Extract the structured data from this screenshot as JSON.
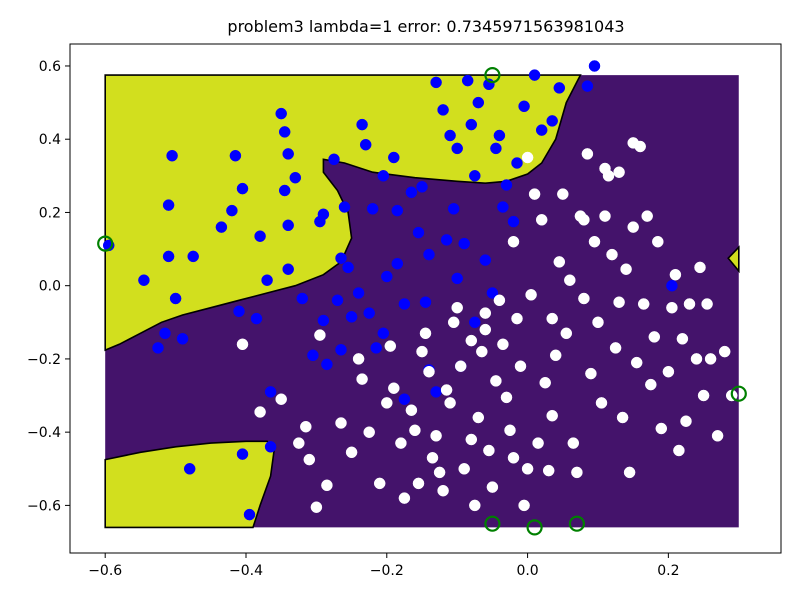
{
  "chart_data": {
    "type": "scatter",
    "title": "problem3 lambda=1 error: 0.7345971563981043",
    "xlabel": "",
    "ylabel": "",
    "xlim": [
      -0.65,
      0.36
    ],
    "ylim": [
      -0.73,
      0.66
    ],
    "x_ticks": [
      "−0.6",
      "−0.4",
      "−0.2",
      "0.0",
      "0.2"
    ],
    "x_tick_values": [
      -0.6,
      -0.4,
      -0.2,
      0.0,
      0.2
    ],
    "y_ticks": [
      "0.6",
      "0.4",
      "0.2",
      "0.0",
      "−0.2",
      "−0.4",
      "−0.6"
    ],
    "y_tick_values": [
      0.6,
      0.4,
      0.2,
      0.0,
      -0.2,
      -0.4,
      -0.6
    ],
    "grid": false,
    "legend": "none",
    "background_region": {
      "x_range": [
        -0.6,
        0.3
      ],
      "y_range": [
        -0.66,
        0.575
      ],
      "class_0_color": "#44136b",
      "class_1_color": "#d2df1e",
      "boundary_color": "#000000",
      "yellow_upper_region": [
        [
          -0.6,
          -0.176
        ],
        [
          -0.58,
          -0.16
        ],
        [
          -0.55,
          -0.13
        ],
        [
          -0.52,
          -0.1
        ],
        [
          -0.49,
          -0.08
        ],
        [
          -0.45,
          -0.06
        ],
        [
          -0.41,
          -0.04
        ],
        [
          -0.37,
          -0.02
        ],
        [
          -0.33,
          0.0
        ],
        [
          -0.29,
          0.03
        ],
        [
          -0.265,
          0.065
        ],
        [
          -0.25,
          0.13
        ],
        [
          -0.255,
          0.2
        ],
        [
          -0.27,
          0.26
        ],
        [
          -0.29,
          0.31
        ],
        [
          -0.29,
          0.345
        ],
        [
          -0.26,
          0.335
        ],
        [
          -0.22,
          0.31
        ],
        [
          -0.16,
          0.295
        ],
        [
          -0.1,
          0.285
        ],
        [
          -0.06,
          0.28
        ],
        [
          -0.03,
          0.285
        ],
        [
          0.0,
          0.305
        ],
        [
          0.02,
          0.335
        ],
        [
          0.04,
          0.4
        ],
        [
          0.055,
          0.5
        ],
        [
          0.075,
          0.575
        ],
        [
          -0.6,
          0.575
        ]
      ],
      "yellow_lower_region": [
        [
          -0.6,
          -0.475
        ],
        [
          -0.55,
          -0.455
        ],
        [
          -0.5,
          -0.44
        ],
        [
          -0.45,
          -0.43
        ],
        [
          -0.4,
          -0.425
        ],
        [
          -0.37,
          -0.425
        ],
        [
          -0.36,
          -0.45
        ],
        [
          -0.365,
          -0.52
        ],
        [
          -0.38,
          -0.6
        ],
        [
          -0.39,
          -0.66
        ],
        [
          -0.6,
          -0.66
        ]
      ],
      "yellow_right_region": [
        [
          0.3,
          0.105
        ],
        [
          0.285,
          0.075
        ],
        [
          0.3,
          0.04
        ]
      ]
    },
    "series": [
      {
        "color": "#0000ff",
        "points": [
          [
            -0.595,
            0.11
          ],
          [
            -0.545,
            0.015
          ],
          [
            -0.525,
            -0.17
          ],
          [
            -0.515,
            -0.13
          ],
          [
            -0.51,
            0.08
          ],
          [
            -0.51,
            0.22
          ],
          [
            -0.505,
            0.355
          ],
          [
            -0.5,
            -0.035
          ],
          [
            -0.49,
            -0.145
          ],
          [
            -0.48,
            -0.5
          ],
          [
            -0.475,
            0.08
          ],
          [
            -0.435,
            0.16
          ],
          [
            -0.42,
            0.205
          ],
          [
            -0.415,
            0.355
          ],
          [
            -0.41,
            -0.07
          ],
          [
            -0.405,
            0.265
          ],
          [
            -0.405,
            -0.46
          ],
          [
            -0.395,
            -0.625
          ],
          [
            -0.385,
            -0.09
          ],
          [
            -0.38,
            0.135
          ],
          [
            -0.37,
            0.015
          ],
          [
            -0.365,
            -0.29
          ],
          [
            -0.365,
            -0.44
          ],
          [
            -0.35,
            0.47
          ],
          [
            -0.345,
            0.42
          ],
          [
            -0.345,
            0.26
          ],
          [
            -0.34,
            0.36
          ],
          [
            -0.34,
            0.165
          ],
          [
            -0.34,
            0.045
          ],
          [
            -0.33,
            0.295
          ],
          [
            -0.32,
            -0.035
          ],
          [
            -0.305,
            -0.19
          ],
          [
            -0.295,
            0.175
          ],
          [
            -0.29,
            0.195
          ],
          [
            -0.29,
            -0.095
          ],
          [
            -0.285,
            -0.215
          ],
          [
            -0.275,
            0.345
          ],
          [
            -0.27,
            -0.04
          ],
          [
            -0.265,
            0.075
          ],
          [
            -0.26,
            0.215
          ],
          [
            -0.255,
            0.05
          ],
          [
            -0.25,
            -0.085
          ],
          [
            -0.24,
            -0.02
          ],
          [
            -0.235,
            0.44
          ],
          [
            -0.23,
            0.385
          ],
          [
            -0.225,
            -0.075
          ],
          [
            -0.22,
            0.21
          ],
          [
            -0.205,
            0.3
          ],
          [
            -0.2,
            0.025
          ],
          [
            -0.19,
            0.35
          ],
          [
            -0.185,
            0.205
          ],
          [
            -0.175,
            -0.05
          ],
          [
            -0.165,
            0.255
          ],
          [
            -0.155,
            0.145
          ],
          [
            -0.15,
            0.27
          ],
          [
            -0.145,
            -0.045
          ],
          [
            -0.14,
            0.085
          ],
          [
            -0.14,
            -0.23
          ],
          [
            -0.13,
            0.555
          ],
          [
            -0.12,
            0.48
          ],
          [
            -0.11,
            0.41
          ],
          [
            -0.105,
            0.21
          ],
          [
            -0.1,
            0.375
          ],
          [
            -0.1,
            0.02
          ],
          [
            -0.095,
            -0.22
          ],
          [
            -0.09,
            0.115
          ],
          [
            -0.085,
            0.56
          ],
          [
            -0.08,
            0.44
          ],
          [
            -0.075,
            0.3
          ],
          [
            -0.07,
            0.5
          ],
          [
            -0.055,
            0.55
          ],
          [
            -0.045,
            0.375
          ],
          [
            -0.04,
            0.41
          ],
          [
            -0.035,
            0.215
          ],
          [
            -0.03,
            0.275
          ],
          [
            -0.02,
            0.175
          ],
          [
            -0.015,
            0.335
          ],
          [
            -0.005,
            0.49
          ],
          [
            0.01,
            0.575
          ],
          [
            0.02,
            0.425
          ],
          [
            0.035,
            0.45
          ],
          [
            0.045,
            0.54
          ],
          [
            0.085,
            0.545
          ],
          [
            0.095,
            0.6
          ],
          [
            0.205,
            0.0
          ],
          [
            -0.075,
            -0.1
          ],
          [
            -0.06,
            0.07
          ],
          [
            -0.05,
            -0.02
          ],
          [
            -0.215,
            -0.17
          ],
          [
            -0.265,
            -0.175
          ],
          [
            -0.13,
            -0.29
          ],
          [
            -0.175,
            -0.31
          ],
          [
            -0.185,
            0.06
          ],
          [
            -0.205,
            -0.13
          ],
          [
            -0.115,
            0.125
          ]
        ]
      },
      {
        "color": "#ffffff",
        "points": [
          [
            -0.405,
            -0.16
          ],
          [
            -0.38,
            -0.345
          ],
          [
            -0.35,
            -0.31
          ],
          [
            -0.325,
            -0.43
          ],
          [
            -0.315,
            -0.385
          ],
          [
            -0.31,
            -0.475
          ],
          [
            -0.3,
            -0.605
          ],
          [
            -0.295,
            -0.135
          ],
          [
            -0.285,
            -0.545
          ],
          [
            -0.265,
            -0.375
          ],
          [
            -0.25,
            -0.455
          ],
          [
            -0.24,
            -0.2
          ],
          [
            -0.235,
            -0.255
          ],
          [
            -0.225,
            -0.4
          ],
          [
            -0.21,
            -0.54
          ],
          [
            -0.2,
            -0.32
          ],
          [
            -0.195,
            -0.165
          ],
          [
            -0.19,
            -0.28
          ],
          [
            -0.18,
            -0.43
          ],
          [
            -0.175,
            -0.58
          ],
          [
            -0.165,
            -0.34
          ],
          [
            -0.16,
            -0.395
          ],
          [
            -0.155,
            -0.54
          ],
          [
            -0.15,
            -0.18
          ],
          [
            -0.145,
            -0.13
          ],
          [
            -0.14,
            -0.235
          ],
          [
            -0.135,
            -0.47
          ],
          [
            -0.13,
            -0.41
          ],
          [
            -0.125,
            -0.51
          ],
          [
            -0.12,
            -0.56
          ],
          [
            -0.115,
            -0.285
          ],
          [
            -0.11,
            -0.32
          ],
          [
            -0.105,
            -0.1
          ],
          [
            -0.1,
            -0.06
          ],
          [
            -0.095,
            -0.22
          ],
          [
            -0.09,
            -0.5
          ],
          [
            -0.08,
            -0.42
          ],
          [
            -0.075,
            -0.6
          ],
          [
            -0.07,
            -0.36
          ],
          [
            -0.065,
            -0.18
          ],
          [
            -0.06,
            -0.12
          ],
          [
            -0.055,
            -0.45
          ],
          [
            -0.05,
            -0.55
          ],
          [
            -0.045,
            -0.26
          ],
          [
            -0.04,
            -0.04
          ],
          [
            -0.035,
            -0.16
          ],
          [
            -0.03,
            -0.305
          ],
          [
            -0.025,
            -0.395
          ],
          [
            -0.02,
            -0.47
          ],
          [
            -0.015,
            -0.09
          ],
          [
            -0.01,
            -0.22
          ],
          [
            -0.005,
            -0.6
          ],
          [
            0.0,
            -0.5
          ],
          [
            0.005,
            -0.025
          ],
          [
            0.01,
            0.25
          ],
          [
            0.015,
            -0.43
          ],
          [
            0.02,
            0.18
          ],
          [
            0.025,
            -0.265
          ],
          [
            0.03,
            -0.505
          ],
          [
            0.035,
            -0.355
          ],
          [
            0.04,
            -0.19
          ],
          [
            0.045,
            0.065
          ],
          [
            0.05,
            0.25
          ],
          [
            0.055,
            -0.13
          ],
          [
            0.06,
            0.015
          ],
          [
            0.065,
            -0.43
          ],
          [
            0.07,
            -0.51
          ],
          [
            0.075,
            0.19
          ],
          [
            0.08,
            -0.035
          ],
          [
            0.085,
            0.36
          ],
          [
            0.09,
            -0.24
          ],
          [
            0.095,
            0.12
          ],
          [
            0.1,
            -0.1
          ],
          [
            0.105,
            -0.32
          ],
          [
            0.11,
            0.19
          ],
          [
            0.115,
            0.3
          ],
          [
            0.12,
            0.085
          ],
          [
            0.125,
            -0.17
          ],
          [
            0.13,
            0.31
          ],
          [
            0.135,
            -0.36
          ],
          [
            0.14,
            0.045
          ],
          [
            0.145,
            -0.51
          ],
          [
            0.15,
            0.16
          ],
          [
            0.155,
            -0.21
          ],
          [
            0.16,
            0.38
          ],
          [
            0.165,
            -0.05
          ],
          [
            0.17,
            0.19
          ],
          [
            0.175,
            -0.27
          ],
          [
            0.18,
            -0.14
          ],
          [
            0.185,
            0.12
          ],
          [
            0.19,
            -0.39
          ],
          [
            0.2,
            -0.235
          ],
          [
            0.205,
            -0.06
          ],
          [
            0.21,
            0.03
          ],
          [
            0.215,
            -0.45
          ],
          [
            0.22,
            -0.145
          ],
          [
            0.225,
            -0.37
          ],
          [
            0.23,
            -0.05
          ],
          [
            0.24,
            -0.2
          ],
          [
            0.245,
            0.05
          ],
          [
            0.25,
            -0.3
          ],
          [
            0.255,
            -0.05
          ],
          [
            0.26,
            -0.2
          ],
          [
            0.27,
            -0.41
          ],
          [
            0.28,
            -0.18
          ],
          [
            0.29,
            -0.3
          ],
          [
            0.13,
            -0.045
          ],
          [
            0.11,
            0.32
          ],
          [
            0.15,
            0.39
          ],
          [
            -0.02,
            0.12
          ],
          [
            0.08,
            0.18
          ],
          [
            -0.08,
            -0.15
          ],
          [
            0.0,
            0.35
          ],
          [
            -0.06,
            -0.075
          ],
          [
            0.035,
            -0.09
          ]
        ]
      },
      {
        "color": "#008000",
        "style": "ring",
        "points": [
          [
            -0.6,
            0.115
          ],
          [
            -0.05,
            0.575
          ],
          [
            -0.05,
            -0.65
          ],
          [
            0.01,
            -0.66
          ],
          [
            0.07,
            -0.65
          ],
          [
            0.3,
            -0.295
          ]
        ]
      }
    ]
  }
}
